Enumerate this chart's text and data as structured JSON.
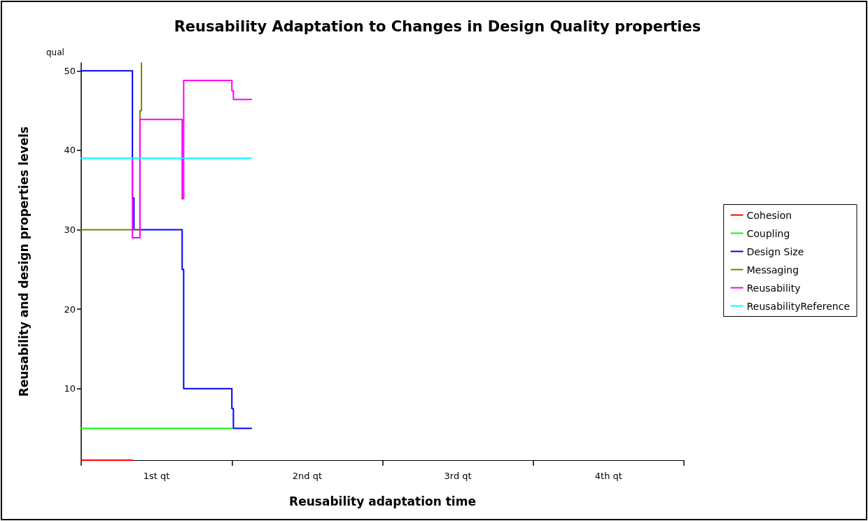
{
  "chart_data": {
    "type": "line",
    "title": "Reusability Adaptation to Changes in Design Quality properties",
    "xlabel": "Reusability adaptation time",
    "ylabel": "Reusability and design properties levels",
    "annotations": [
      "qual"
    ],
    "xlim": [
      0,
      4
    ],
    "xticks": [
      {
        "value": 0,
        "label": null
      },
      {
        "value": 0.5,
        "label": "1st qt"
      },
      {
        "value": 1,
        "label": null
      },
      {
        "value": 1.5,
        "label": "2nd qt"
      },
      {
        "value": 2,
        "label": null
      },
      {
        "value": 2.5,
        "label": "3rd qt"
      },
      {
        "value": 3,
        "label": null
      },
      {
        "value": 3.5,
        "label": "4th qt"
      },
      {
        "value": 4,
        "label": null
      }
    ],
    "ylim": [
      1,
      51
    ],
    "yticks": [
      10,
      20,
      30,
      40,
      50
    ],
    "grid": false,
    "legend": "right",
    "marker": "none",
    "line_style": "solid",
    "series": [
      {
        "name": "Cohesion",
        "color": "#ff0000",
        "x": [
          0,
          0.34
        ],
        "values": [
          1,
          1
        ]
      },
      {
        "name": "Coupling",
        "color": "#00ff00",
        "x": [
          0,
          1.0
        ],
        "values": [
          5,
          5
        ]
      },
      {
        "name": "Design Size",
        "color": "#0000ff",
        "x": [
          0,
          0.34,
          0.34,
          0.34,
          0.34,
          0.35,
          0.35,
          0.67,
          0.67,
          0.68,
          0.68,
          0.68,
          0.68,
          1.0,
          1.0,
          1.01,
          1.01,
          1.13
        ],
        "values": [
          50,
          50,
          40,
          40,
          34,
          34,
          30,
          30,
          25,
          25,
          15,
          15,
          10,
          10,
          7.5,
          7.5,
          5,
          5
        ]
      },
      {
        "name": "Messaging",
        "color": "#808000",
        "x": [
          0,
          0.39,
          0.39,
          0.4,
          0.4
        ],
        "values": [
          30,
          30,
          45,
          45,
          51
        ]
      },
      {
        "name": "Reusability",
        "color": "#ff00ff",
        "x": [
          0.34,
          0.34,
          0.34,
          0.39,
          0.39,
          0.67,
          0.67,
          0.67,
          0.67,
          0.68,
          0.68,
          1.0,
          1.0,
          1.01,
          1.01,
          1.13
        ],
        "values": [
          39,
          34,
          29,
          29,
          43.9,
          43.9,
          41.3,
          41.3,
          33.9,
          33.9,
          48.8,
          48.8,
          47.5,
          47.5,
          46.4,
          46.4
        ]
      },
      {
        "name": "ReusabilityReference",
        "color": "#00ffff",
        "x": [
          0,
          1.13
        ],
        "values": [
          39,
          39
        ]
      }
    ]
  }
}
